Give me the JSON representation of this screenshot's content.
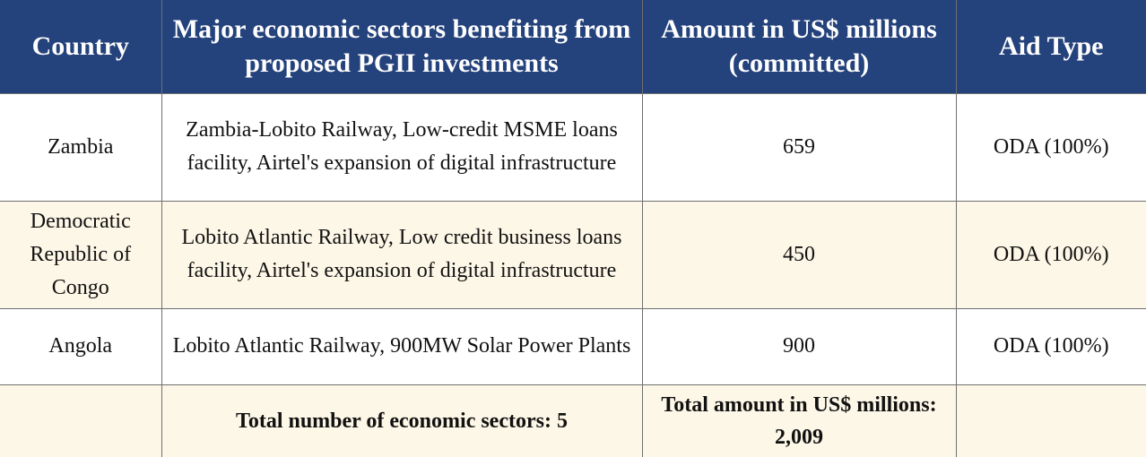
{
  "table": {
    "headers": [
      "Country",
      "Major economic sectors benefiting from proposed PGII investments",
      "Amount in US$ millions (committed)",
      "Aid Type"
    ],
    "rows": [
      {
        "country": "Zambia",
        "sectors": "Zambia-Lobito Railway, Low-credit MSME loans facility, Airtel's expansion of digital infrastructure",
        "amount": "659",
        "aid_type": "ODA (100%)"
      },
      {
        "country": "Democratic Republic of Congo",
        "sectors": "Lobito Atlantic Railway, Low credit business loans facility, Airtel's expansion of digital infrastructure",
        "amount": "450",
        "aid_type": "ODA (100%)"
      },
      {
        "country": "Angola",
        "sectors": "Lobito Atlantic Railway, 900MW Solar Power Plants",
        "amount": "900",
        "aid_type": "ODA (100%)"
      }
    ],
    "totals": {
      "country": "",
      "sectors": "Total number of economic sectors: 5",
      "amount": "Total amount in US$ millions: 2,009",
      "aid_type": ""
    }
  },
  "colors": {
    "header_bg": "#24427c",
    "header_text": "#ffffff",
    "row_cream": "#fdf7e7",
    "row_white": "#ffffff",
    "border": "#6f6f6f"
  }
}
